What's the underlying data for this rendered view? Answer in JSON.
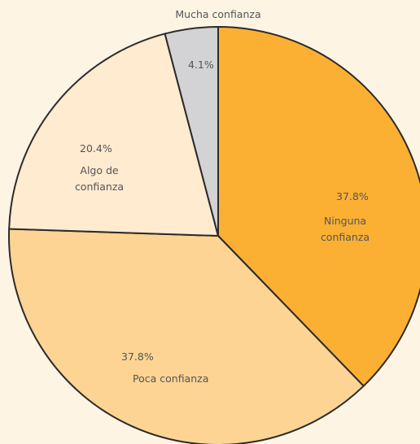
{
  "chart_data": {
    "type": "pie",
    "categories": [
      "Ninguna confianza",
      "Poca confianza",
      "Algo de confianza",
      "Mucha confianza"
    ],
    "values": [
      37.8,
      37.8,
      20.4,
      4.1
    ],
    "value_labels": [
      "37.8%",
      "37.8%",
      "20.4%",
      "4.1%"
    ],
    "colors": [
      "#fbb034",
      "#fdd493",
      "#feebd0",
      "#d3d3d5"
    ]
  }
}
